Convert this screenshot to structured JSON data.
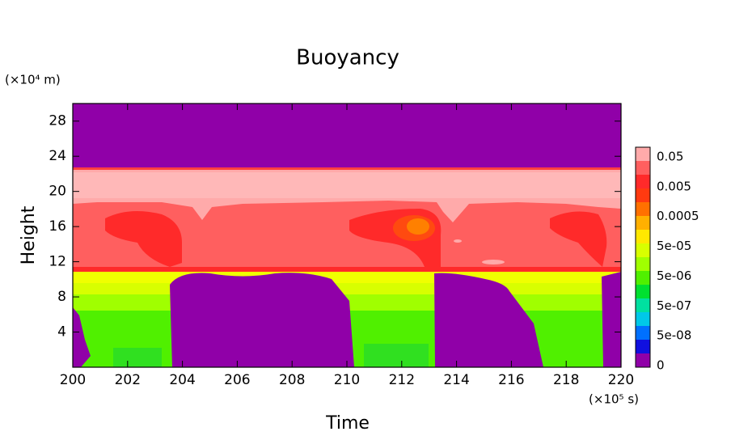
{
  "chart_data": {
    "type": "contour",
    "title": "Buoyancy",
    "x_label": "Time",
    "y_label": "Height",
    "x_unit": "(×10⁵ s)",
    "y_unit": "(×10⁴ m)",
    "xlim": [
      200,
      220
    ],
    "xticks": [
      200,
      202,
      204,
      206,
      208,
      210,
      212,
      214,
      216,
      218,
      220
    ],
    "ylim": [
      0,
      30
    ],
    "yticks": [
      4,
      8,
      12,
      16,
      20,
      24,
      28
    ],
    "colorbar_colors": [
      "#ffaaaa",
      "#ff5f5f",
      "#ff2a2a",
      "#ff3a10",
      "#ff7000",
      "#ffb000",
      "#ffe800",
      "#d8ff00",
      "#a0ff00",
      "#50f000",
      "#00e030",
      "#00e0a0",
      "#00c8e8",
      "#0070ff",
      "#1010e0",
      "#9000a8"
    ],
    "colorbar_labels": [
      "0.05",
      "0.005",
      "0.0005",
      "5e-05",
      "5e-06",
      "5e-07",
      "5e-08",
      "0"
    ]
  }
}
